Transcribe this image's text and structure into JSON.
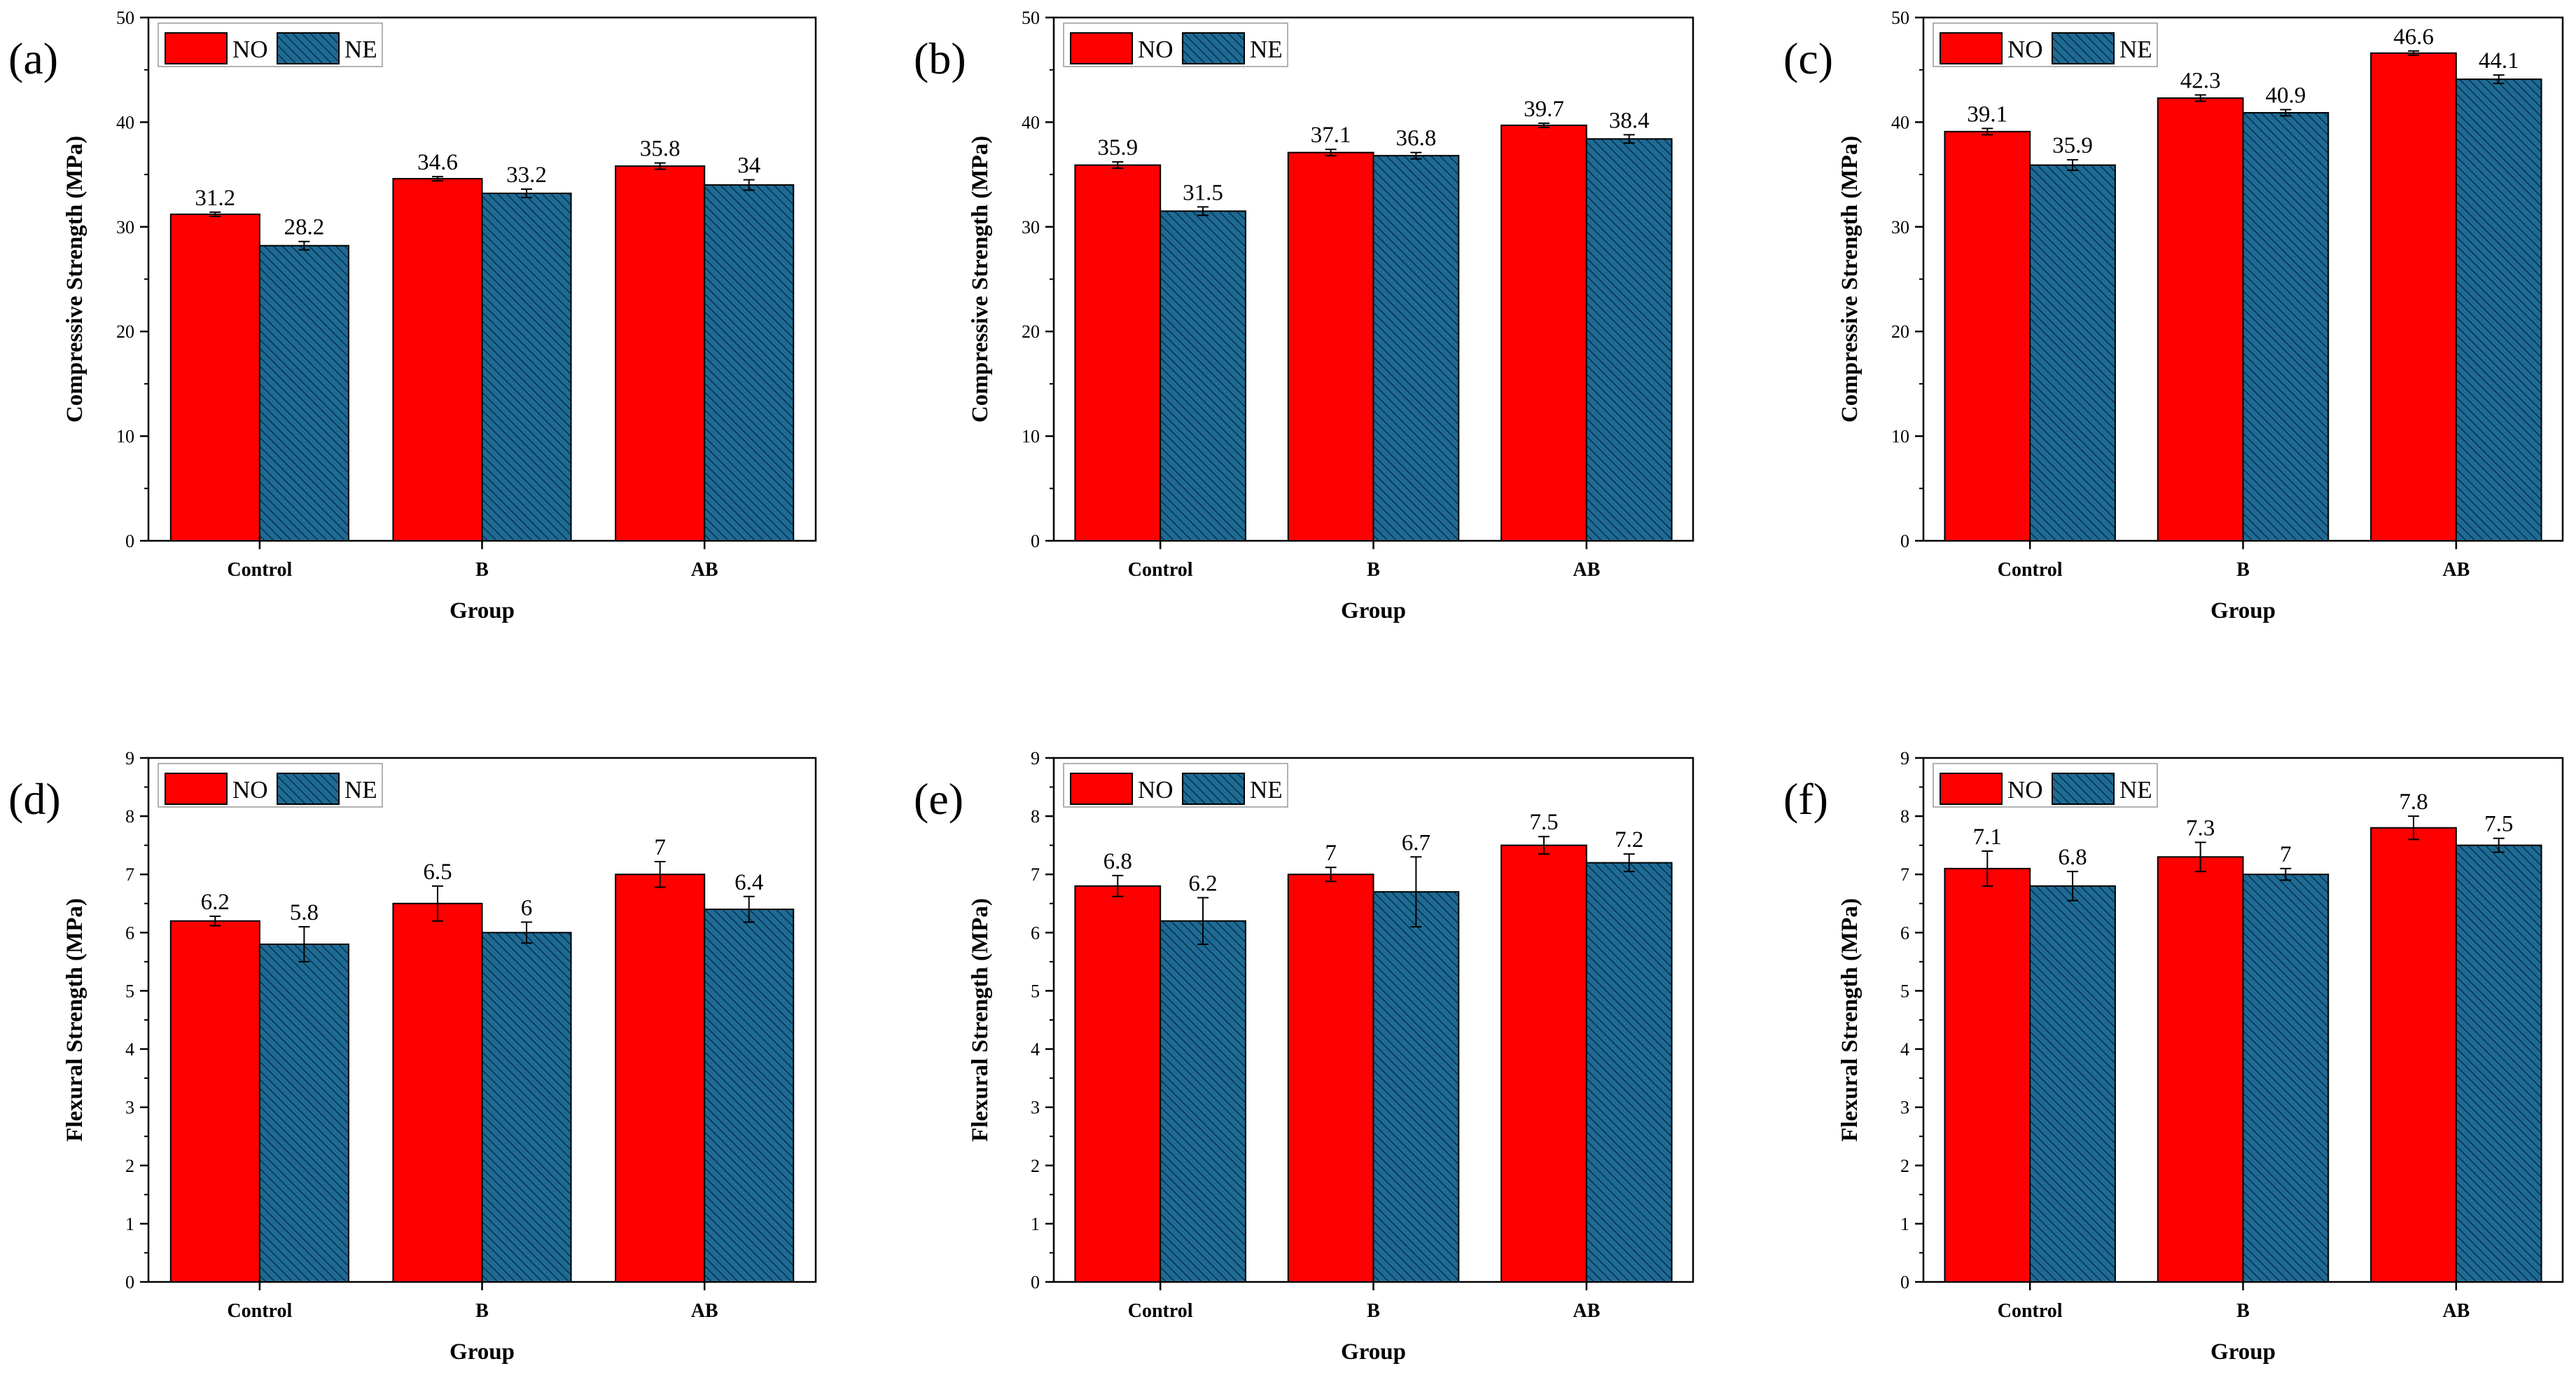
{
  "legend": {
    "series": [
      "NO",
      "NE"
    ]
  },
  "colors": {
    "NO": "#ff0000",
    "NE": "#1d6b95",
    "axis": "#000000"
  },
  "chart_data": [
    {
      "panel": "(a)",
      "type": "bar",
      "categories": [
        "Control",
        "B",
        "AB"
      ],
      "series": [
        {
          "name": "NO",
          "values": [
            31.2,
            34.6,
            35.8
          ],
          "labels": [
            "31.2",
            "34.6",
            "35.8"
          ],
          "errors": [
            0.2,
            0.2,
            0.3
          ]
        },
        {
          "name": "NE",
          "values": [
            28.2,
            33.2,
            34
          ],
          "labels": [
            "28.2",
            "33.2",
            "34"
          ],
          "errors": [
            0.4,
            0.4,
            0.5
          ]
        }
      ],
      "xlabel": "Group",
      "ylabel": "Compressive Strength (MPa)",
      "ylim": [
        0,
        50
      ],
      "yticks": [
        0,
        10,
        20,
        30,
        40,
        50
      ],
      "tick_labels": [
        "0",
        "10",
        "20",
        "30",
        "40",
        "50"
      ],
      "category_bold": true,
      "legend_position": "top-left"
    },
    {
      "panel": "(b)",
      "type": "bar",
      "categories": [
        "Control",
        "B",
        "AB"
      ],
      "series": [
        {
          "name": "NO",
          "values": [
            35.9,
            37.1,
            39.7
          ],
          "labels": [
            "35.9",
            "37.1",
            "39.7"
          ],
          "errors": [
            0.3,
            0.3,
            0.2
          ]
        },
        {
          "name": "NE",
          "values": [
            31.5,
            36.8,
            38.4
          ],
          "labels": [
            "31.5",
            "36.8",
            "38.4"
          ],
          "errors": [
            0.4,
            0.3,
            0.4
          ]
        }
      ],
      "xlabel": "Group",
      "ylabel": "Compressive Strength (MPa)",
      "ylim": [
        0,
        50
      ],
      "yticks": [
        0,
        10,
        20,
        30,
        40,
        50
      ],
      "tick_labels": [
        "0",
        "10",
        "20",
        "30",
        "40",
        "50"
      ],
      "category_bold": true,
      "legend_position": "top-left"
    },
    {
      "panel": "(c)",
      "type": "bar",
      "categories": [
        "Control",
        "B",
        "AB"
      ],
      "series": [
        {
          "name": "NO",
          "values": [
            39.1,
            42.3,
            46.6
          ],
          "labels": [
            "39.1",
            "42.3",
            "46.6"
          ],
          "errors": [
            0.3,
            0.3,
            0.2
          ]
        },
        {
          "name": "NE",
          "values": [
            35.9,
            40.9,
            44.1
          ],
          "labels": [
            "35.9",
            "40.9",
            "44.1"
          ],
          "errors": [
            0.5,
            0.3,
            0.4
          ]
        }
      ],
      "xlabel": "Group",
      "ylabel": "Compressive Strength (MPa)",
      "ylim": [
        0,
        50
      ],
      "yticks": [
        0,
        10,
        20,
        30,
        40,
        50
      ],
      "tick_labels": [
        "0",
        "10",
        "20",
        "30",
        "40",
        "50"
      ],
      "category_bold": true,
      "legend_position": "top-left"
    },
    {
      "panel": "(d)",
      "type": "bar",
      "categories": [
        "Control",
        "B",
        "AB"
      ],
      "series": [
        {
          "name": "NO",
          "values": [
            6.2,
            6.5,
            7
          ],
          "labels": [
            "6.2",
            "6.5",
            "7"
          ],
          "errors": [
            0.08,
            0.3,
            0.22
          ]
        },
        {
          "name": "NE",
          "values": [
            5.8,
            6,
            6.4
          ],
          "labels": [
            "5.8",
            "6",
            "6.4"
          ],
          "errors": [
            0.3,
            0.18,
            0.22
          ]
        }
      ],
      "xlabel": "Group",
      "ylabel": "Flexural Strength (MPa)",
      "ylim": [
        0,
        9
      ],
      "yticks": [
        0,
        1,
        2,
        3,
        4,
        5,
        6,
        7,
        8,
        9
      ],
      "tick_labels": [
        "0",
        "1",
        "2",
        "3",
        "4",
        "5",
        "6",
        "7",
        "8",
        "9"
      ],
      "category_bold": true,
      "legend_position": "top-left"
    },
    {
      "panel": "(e)",
      "type": "bar",
      "categories": [
        "Control",
        "B",
        "AB"
      ],
      "series": [
        {
          "name": "NO",
          "values": [
            6.8,
            7,
            7.5
          ],
          "labels": [
            "6.8",
            "7",
            "7.5"
          ],
          "errors": [
            0.18,
            0.12,
            0.15
          ]
        },
        {
          "name": "NE",
          "values": [
            6.2,
            6.7,
            7.2
          ],
          "labels": [
            "6.2",
            "6.7",
            "7.2"
          ],
          "errors": [
            0.4,
            0.6,
            0.15
          ]
        }
      ],
      "xlabel": "Group",
      "ylabel": "Flexural Strength (MPa)",
      "ylim": [
        0,
        9
      ],
      "yticks": [
        0,
        1,
        2,
        3,
        4,
        5,
        6,
        7,
        8,
        9
      ],
      "tick_labels": [
        "0",
        "1",
        "2",
        "3",
        "4",
        "5",
        "6",
        "7",
        "8",
        "9"
      ],
      "category_bold": true,
      "legend_position": "top-left"
    },
    {
      "panel": "(f)",
      "type": "bar",
      "categories": [
        "Control",
        "B",
        "AB"
      ],
      "series": [
        {
          "name": "NO",
          "values": [
            7.1,
            7.3,
            7.8
          ],
          "labels": [
            "7.1",
            "7.3",
            "7.8"
          ],
          "errors": [
            0.3,
            0.25,
            0.2
          ]
        },
        {
          "name": "NE",
          "values": [
            6.8,
            7,
            7.5
          ],
          "labels": [
            "6.8",
            "7",
            "7.5"
          ],
          "errors": [
            0.25,
            0.1,
            0.12
          ]
        }
      ],
      "xlabel": "Group",
      "ylabel": "Flexural Strength (MPa)",
      "ylim": [
        0,
        9
      ],
      "yticks": [
        0,
        1,
        2,
        3,
        4,
        5,
        6,
        7,
        8,
        9
      ],
      "tick_labels": [
        "0",
        "1",
        "2",
        "3",
        "4",
        "5",
        "6",
        "7",
        "8",
        "9"
      ],
      "category_bold": false,
      "legend_position": "top-left"
    }
  ]
}
